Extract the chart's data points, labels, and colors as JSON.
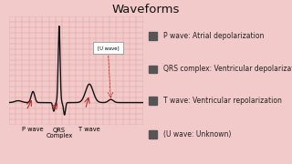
{
  "title": "Waveforms",
  "bg_color": "#f2caca",
  "ecg_box_bg": "#f7d8d8",
  "grid_color": "#e09090",
  "ecg_color": "#111111",
  "arrow_color": "#aa2222",
  "legend_items": [
    "P wave: Atrial depolarization",
    "QRS complex: Ventricular depolarization",
    "T wave: Ventricular repolarization",
    "(U wave: Unknown)"
  ],
  "title_fontsize": 9.5,
  "label_fontsize": 4.8,
  "legend_fontsize": 5.5
}
